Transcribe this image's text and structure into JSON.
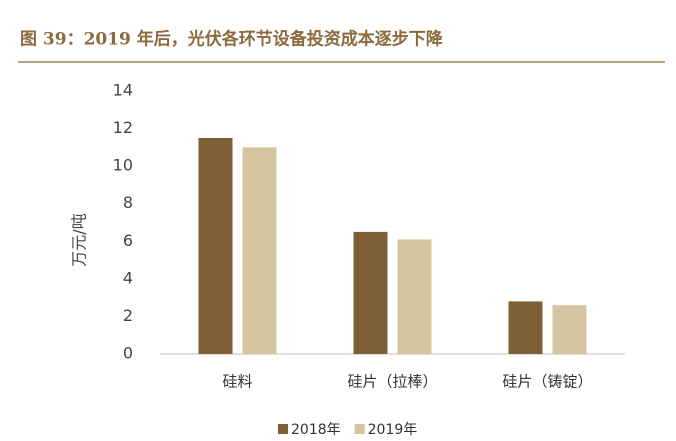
{
  "chart_data": {
    "type": "bar",
    "title": "图 39：2019 年后，光伏各环节设备投资成本逐步下降",
    "y_label": "万元/吨",
    "categories": [
      "硅料",
      "硅片（拉棒）",
      "硅片（铸锭）"
    ],
    "series": [
      {
        "name": "2018年",
        "color": "#7f5f36",
        "values": [
          11.5,
          6.5,
          2.8
        ]
      },
      {
        "name": "2019年",
        "color": "#d4c4a0",
        "values": [
          11.0,
          6.1,
          2.6
        ]
      }
    ],
    "ylim": [
      0,
      14
    ],
    "yticks": [
      0,
      2,
      4,
      6,
      8,
      10,
      12,
      14
    ],
    "grid": false,
    "legend": "bottom"
  }
}
